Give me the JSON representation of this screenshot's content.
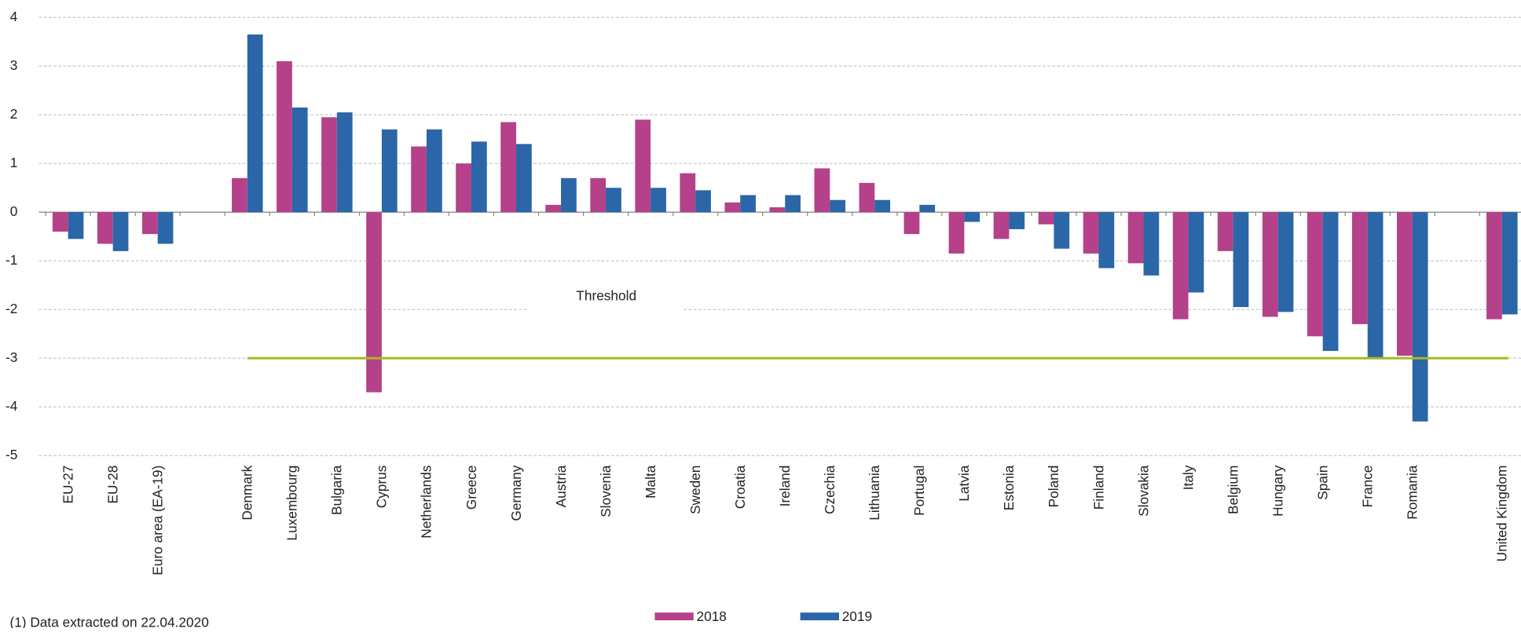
{
  "chart_data": {
    "type": "bar",
    "categories": [
      "EU-27",
      "EU-28",
      "Euro area (EA-19)",
      null,
      "Denmark",
      "Luxembourg",
      "Bulgaria",
      "Cyprus",
      "Netherlands",
      "Greece",
      "Germany",
      "Austria",
      "Slovenia",
      "Malta",
      "Sweden",
      "Croatia",
      "Ireland",
      "Czechia",
      "Lithuania",
      "Portugal",
      "Latvia",
      "Estonia",
      "Poland",
      "Finland",
      "Slovakia",
      "Italy",
      "Belgium",
      "Hungary",
      "Spain",
      "France",
      "Romania",
      null,
      "United Kingdom"
    ],
    "series": [
      {
        "name": "2018",
        "color": "#b5418a",
        "values": [
          -0.4,
          -0.65,
          -0.45,
          null,
          0.7,
          3.1,
          1.95,
          -3.7,
          1.35,
          1.0,
          1.85,
          0.15,
          0.7,
          1.9,
          0.8,
          0.2,
          0.1,
          0.9,
          0.6,
          -0.45,
          -0.85,
          -0.55,
          -0.25,
          -0.85,
          -1.05,
          -2.2,
          -0.8,
          -2.15,
          -2.55,
          -2.3,
          -2.95,
          null,
          -2.2
        ]
      },
      {
        "name": "2019",
        "color": "#2a66a8",
        "values": [
          -0.55,
          -0.8,
          -0.65,
          null,
          3.65,
          2.15,
          2.05,
          1.7,
          1.7,
          1.45,
          1.4,
          0.7,
          0.5,
          0.5,
          0.45,
          0.35,
          0.35,
          0.25,
          0.25,
          0.15,
          -0.2,
          -0.35,
          -0.75,
          -1.15,
          -1.3,
          -1.65,
          -1.95,
          -2.05,
          -2.85,
          -3.0,
          -4.3,
          null,
          -2.1
        ]
      }
    ],
    "ylim": [
      -5,
      4
    ],
    "yticks": [
      -5,
      -4,
      -3,
      -2,
      -1,
      0,
      1,
      2,
      3,
      4
    ],
    "grid": true,
    "threshold": {
      "label": "Threshold",
      "value": -3,
      "color": "#a8b820"
    },
    "legend": "bottom",
    "footnote": "(1) Data extracted on 22.04.2020"
  }
}
